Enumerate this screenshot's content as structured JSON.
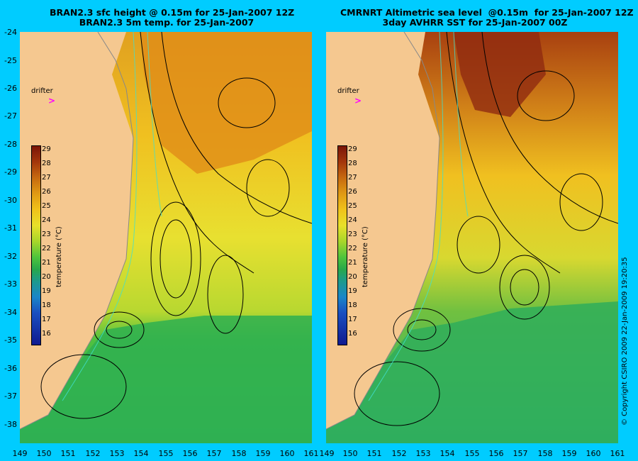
{
  "titles": {
    "left": "BRAN2.3 sfc height @ 0.15m for 25-Jan-2007 12Z\nBRAN2.3 5m temp. for 25-Jan-2007",
    "right": "CMRNRT Altimetric sea level  @0.15m  for 25-Jan-2007 12Z\n3day AVHRR SST for 25-Jan-2007 00Z"
  },
  "axis": {
    "lat_labels": [
      "-24",
      "-25",
      "-26",
      "-27",
      "-28",
      "-29",
      "-30",
      "-31",
      "-32",
      "-33",
      "-34",
      "-35",
      "-36",
      "-37",
      "-38"
    ],
    "lon_labels_left": [
      "149",
      "150",
      "151",
      "152",
      "153",
      "154",
      "155",
      "156",
      "157",
      "158",
      "159",
      "160",
      "161"
    ],
    "lon_labels_right": [
      "150",
      "151",
      "152",
      "153",
      "154",
      "155",
      "156",
      "157",
      "158",
      "159",
      "160",
      "161"
    ],
    "lon_label_shared": "149"
  },
  "colorbar": {
    "title": "temperature (°C)",
    "ticks": [
      "29",
      "28",
      "27",
      "26",
      "25",
      "24",
      "23",
      "22",
      "21",
      "20",
      "19",
      "18",
      "17",
      "16"
    ]
  },
  "drifter_label": "drifter",
  "copyright": "© Copyright CSIRO 2009    22-Jan-2009 19:20:35",
  "colors": {
    "background": "#00ccff",
    "land": "#f5c890",
    "contour": "#000000",
    "bathymetry": "#40e0d0",
    "drifter": "#ff00ff"
  }
}
